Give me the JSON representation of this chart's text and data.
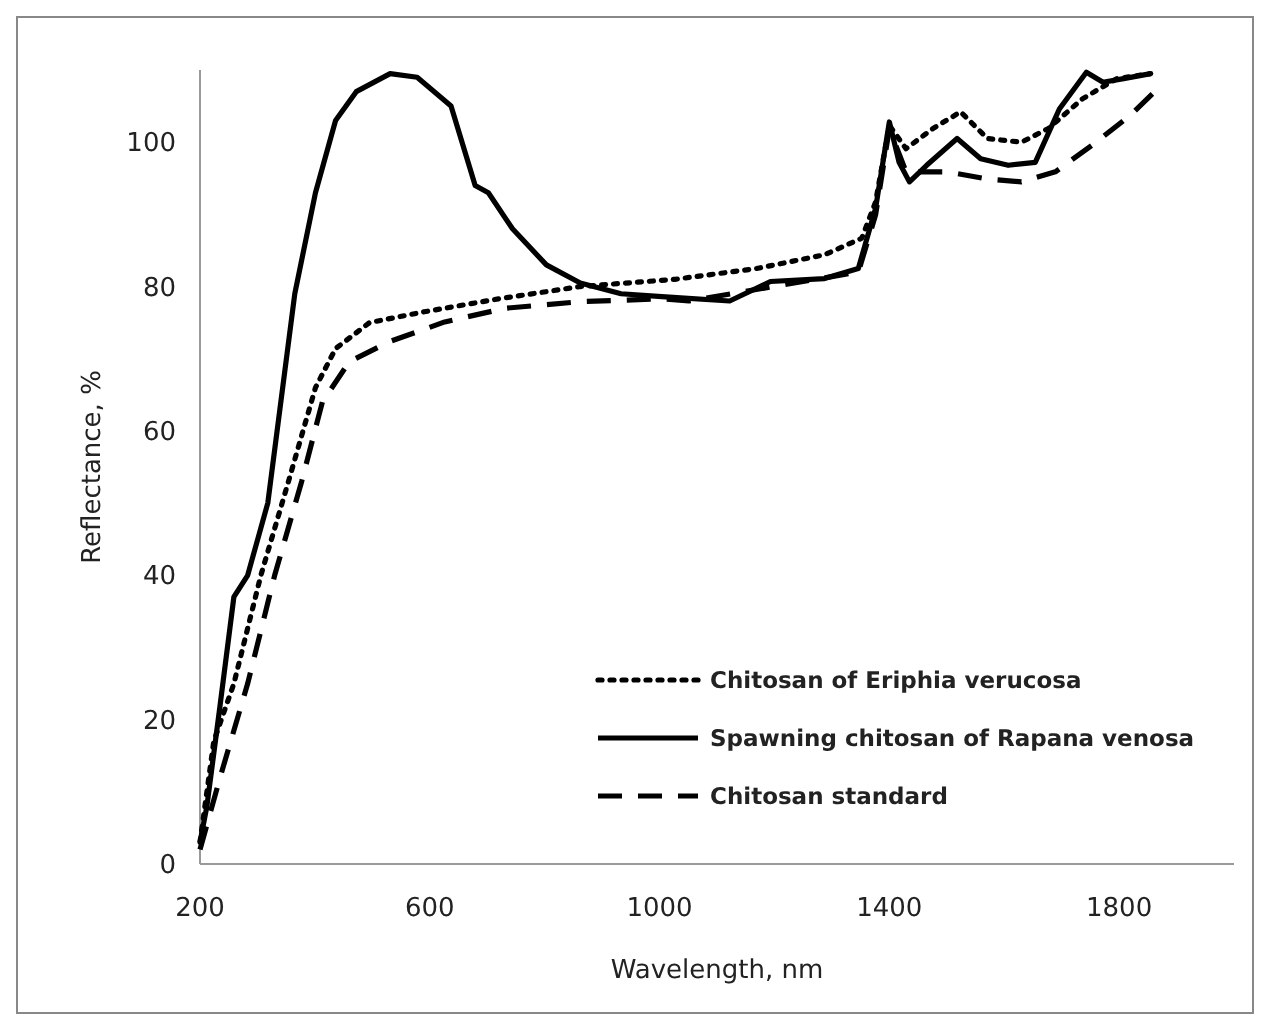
{
  "chart_data": {
    "type": "line",
    "xlabel": "Wavelength, nm",
    "ylabel": "Reflectance, %",
    "xlim": [
      200,
      2000
    ],
    "xticks": [
      200,
      600,
      1000,
      1400,
      1800
    ],
    "ylim": [
      0,
      110
    ],
    "yticks": [
      0,
      20,
      40,
      60,
      80,
      100
    ],
    "grid": false,
    "legend": "bottom right",
    "series": [
      {
        "name": "Chitosan of Eriphia verucosa",
        "color": "#000000",
        "line_style": "dotted",
        "x": [
          200,
          224,
          259,
          306,
          354,
          401,
          436,
          495,
          590,
          720,
          862,
          1027,
          1169,
          1287,
          1352,
          1376,
          1400,
          1429,
          1476,
          1524,
          1571,
          1630,
          1677,
          1736,
          1796,
          1855
        ],
        "values": [
          3,
          17,
          25,
          40,
          53,
          66,
          71.4,
          75,
          76.5,
          78.3,
          80,
          81,
          82.5,
          84.4,
          86.7,
          91.7,
          102.3,
          99.1,
          101.9,
          104.2,
          100.5,
          100,
          101.9,
          106,
          108.8,
          109.5
        ]
      },
      {
        "name": "Spawning chitosan of Rapana venosa",
        "color": "#000000",
        "line_style": "solid",
        "x": [
          200,
          212,
          235,
          259,
          283,
          318,
          365,
          401,
          436,
          472,
          531,
          578,
          637,
          679,
          702,
          744,
          803,
          862,
          933,
          1004,
          1122,
          1193,
          1287,
          1346,
          1376,
          1400,
          1417,
          1435,
          1465,
          1518,
          1559,
          1607,
          1654,
          1696,
          1743,
          1772,
          1808,
          1855
        ],
        "values": [
          3,
          8,
          22,
          37,
          40,
          50,
          79,
          93,
          103,
          107,
          109.5,
          109,
          105,
          94,
          93,
          88,
          83,
          80.5,
          79,
          78.6,
          78,
          80.7,
          81.1,
          82.5,
          90.8,
          102.8,
          97.2,
          94.5,
          96.8,
          100.5,
          97.7,
          96.8,
          97.2,
          104.6,
          109.7,
          108.3,
          108.8,
          109.5
        ]
      },
      {
        "name": "Chitosan standard",
        "color": "#000000",
        "line_style": "dashed",
        "x": [
          200,
          235,
          283,
          330,
          377,
          413,
          460,
          531,
          626,
          732,
          862,
          1004,
          1051,
          1346,
          1376,
          1400,
          1429,
          1500,
          1571,
          1630,
          1689,
          1760,
          1819,
          1867
        ],
        "values": [
          2,
          12,
          25,
          40,
          53,
          64,
          69.6,
          72.4,
          75.1,
          77,
          77.9,
          78.3,
          78,
          82,
          89.9,
          101.9,
          95.9,
          95.9,
          94.9,
          94.5,
          95.9,
          100,
          103.7,
          107.4
        ]
      }
    ]
  }
}
